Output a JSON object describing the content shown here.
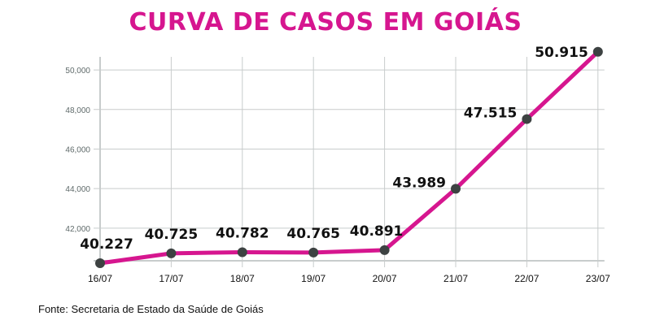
{
  "chart_data": {
    "type": "line",
    "title": "CURVA DE CASOS EM GOIÁS",
    "categories": [
      "16/07",
      "17/07",
      "18/07",
      "19/07",
      "20/07",
      "21/07",
      "22/07",
      "23/07"
    ],
    "values": [
      40227,
      40725,
      40782,
      40765,
      40891,
      43989,
      47515,
      50915
    ],
    "data_labels": [
      "40.227",
      "40.725",
      "40.782",
      "40.765",
      "40.891",
      "43.989",
      "47.515",
      "50.915"
    ],
    "y_ticks": [
      42000,
      44000,
      46000,
      48000,
      50000
    ],
    "y_tick_labels": [
      "42,000",
      "44,000",
      "46,000",
      "48,000",
      "50,000"
    ],
    "ylim": [
      40350,
      50660
    ],
    "grid": true,
    "xlabel": "",
    "ylabel": "",
    "colors": {
      "line": "#d6168f",
      "marker": "#3d4242",
      "grid": "#c8cccc",
      "tick_text": "#5f6a6a"
    }
  },
  "source": "Fonte: Secretaria de Estado da Saúde de Goiás"
}
